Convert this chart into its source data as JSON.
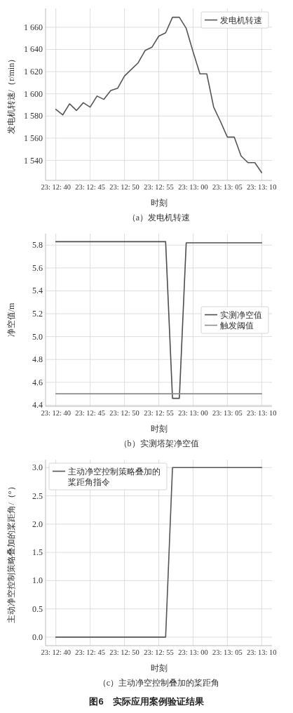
{
  "chart_data": [
    {
      "type": "line",
      "title": "（a）发电机转速",
      "xlabel": "时刻",
      "ylabel": "发电机转速/（r/min）",
      "grid": true,
      "legend": "top right",
      "categories": [
        "23: 12: 40",
        null,
        null,
        null,
        null,
        "23: 12: 45",
        null,
        null,
        null,
        null,
        "23: 12: 50",
        null,
        null,
        null,
        null,
        "23: 12: 55",
        null,
        null,
        null,
        null,
        "23: 13: 00",
        null,
        null,
        null,
        null,
        "23: 13: 05",
        null,
        null,
        null,
        null,
        "23: 13: 10"
      ],
      "ylim": [
        1522,
        1677
      ],
      "yticks": [
        {
          "value": 1540,
          "label": "1 540"
        },
        {
          "value": 1560,
          "label": "1 560"
        },
        {
          "value": 1580,
          "label": "1 580"
        },
        {
          "value": 1600,
          "label": "1 600"
        },
        {
          "value": 1620,
          "label": "1 620"
        },
        {
          "value": 1640,
          "label": "1 640"
        },
        {
          "value": 1660,
          "label": "1 660"
        }
      ],
      "series": [
        {
          "name": "发电机转速",
          "color": "#555555",
          "values": [
            1586,
            1581,
            1591,
            1585,
            1592,
            1588,
            1598,
            1595,
            1603,
            1605,
            1616,
            1622,
            1628,
            1639,
            1642,
            1652,
            1655,
            1669,
            1669,
            1659,
            1638,
            1618,
            1618,
            1588,
            1575,
            1561,
            1561,
            1544,
            1538,
            1538,
            1529
          ]
        }
      ]
    },
    {
      "type": "line",
      "title": "（b）实测塔架净空值",
      "xlabel": "时刻",
      "ylabel": "净空值/m",
      "grid": true,
      "legend": "right",
      "categories": [
        "23: 12: 40",
        null,
        null,
        null,
        null,
        "23: 12: 45",
        null,
        null,
        null,
        null,
        "23: 12: 50",
        null,
        null,
        null,
        null,
        "23: 12: 55",
        null,
        null,
        null,
        null,
        "23: 13: 00",
        null,
        null,
        null,
        null,
        "23: 13: 05",
        null,
        null,
        null,
        null,
        "23: 13: 10"
      ],
      "ylim": [
        4.39,
        5.9
      ],
      "yticks": [
        4.4,
        4.6,
        4.8,
        {
          "value": 5,
          "label": "5.0"
        },
        5.2,
        5.4,
        5.6,
        5.8
      ],
      "series": [
        {
          "name": "实测净空值",
          "color": "#4d4d4d",
          "values": [
            5.83,
            5.83,
            5.83,
            5.83,
            5.83,
            5.83,
            5.83,
            5.83,
            5.83,
            5.83,
            5.83,
            5.83,
            5.83,
            5.83,
            5.83,
            5.83,
            5.83,
            4.46,
            4.46,
            5.82,
            5.82,
            5.82,
            5.82,
            5.82,
            5.82,
            5.82,
            5.82,
            5.82,
            5.82,
            5.82,
            5.82
          ]
        },
        {
          "name": "触发阈值",
          "color": "#8c8c8c",
          "values": [
            4.5,
            4.5,
            4.5,
            4.5,
            4.5,
            4.5,
            4.5,
            4.5,
            4.5,
            4.5,
            4.5,
            4.5,
            4.5,
            4.5,
            4.5,
            4.5,
            4.5,
            4.5,
            4.5,
            4.5,
            4.5,
            4.5,
            4.5,
            4.5,
            4.5,
            4.5,
            4.5,
            4.5,
            4.5,
            4.5,
            4.5
          ]
        }
      ]
    },
    {
      "type": "line",
      "title": "（c）主动净空控制叠加的桨距角",
      "xlabel": "时刻",
      "ylabel": "主动净空控制策略叠加的桨距角/（°）",
      "grid": true,
      "legend": "top left",
      "annotations": [
        "图6　实际应用案例验证结果"
      ],
      "categories": [
        "23: 12: 40",
        null,
        null,
        null,
        null,
        "23: 12: 45",
        null,
        null,
        null,
        null,
        "23: 12: 50",
        null,
        null,
        null,
        null,
        "23: 12: 55",
        null,
        null,
        null,
        null,
        "23: 13: 00",
        null,
        null,
        null,
        null,
        "23: 13: 05",
        null,
        null,
        null,
        null,
        "23: 13: 10"
      ],
      "ylim": [
        -0.15,
        3.14
      ],
      "yticks": [
        {
          "value": 0,
          "label": "0.0"
        },
        0.5,
        {
          "value": 1,
          "label": "1.0"
        },
        1.5,
        {
          "value": 2,
          "label": "2.0"
        },
        2.5,
        {
          "value": 3,
          "label": "3.0"
        }
      ],
      "series": [
        {
          "name": "主动净空控制策略叠加的桨距角指令",
          "color": "#555555",
          "values": [
            0,
            0,
            0,
            0,
            0,
            0,
            0,
            0,
            0,
            0,
            0,
            0,
            0,
            0,
            0,
            0,
            0,
            3,
            3,
            3,
            3,
            3,
            3,
            3,
            3,
            3,
            3,
            3,
            3,
            3,
            3
          ]
        }
      ]
    }
  ]
}
